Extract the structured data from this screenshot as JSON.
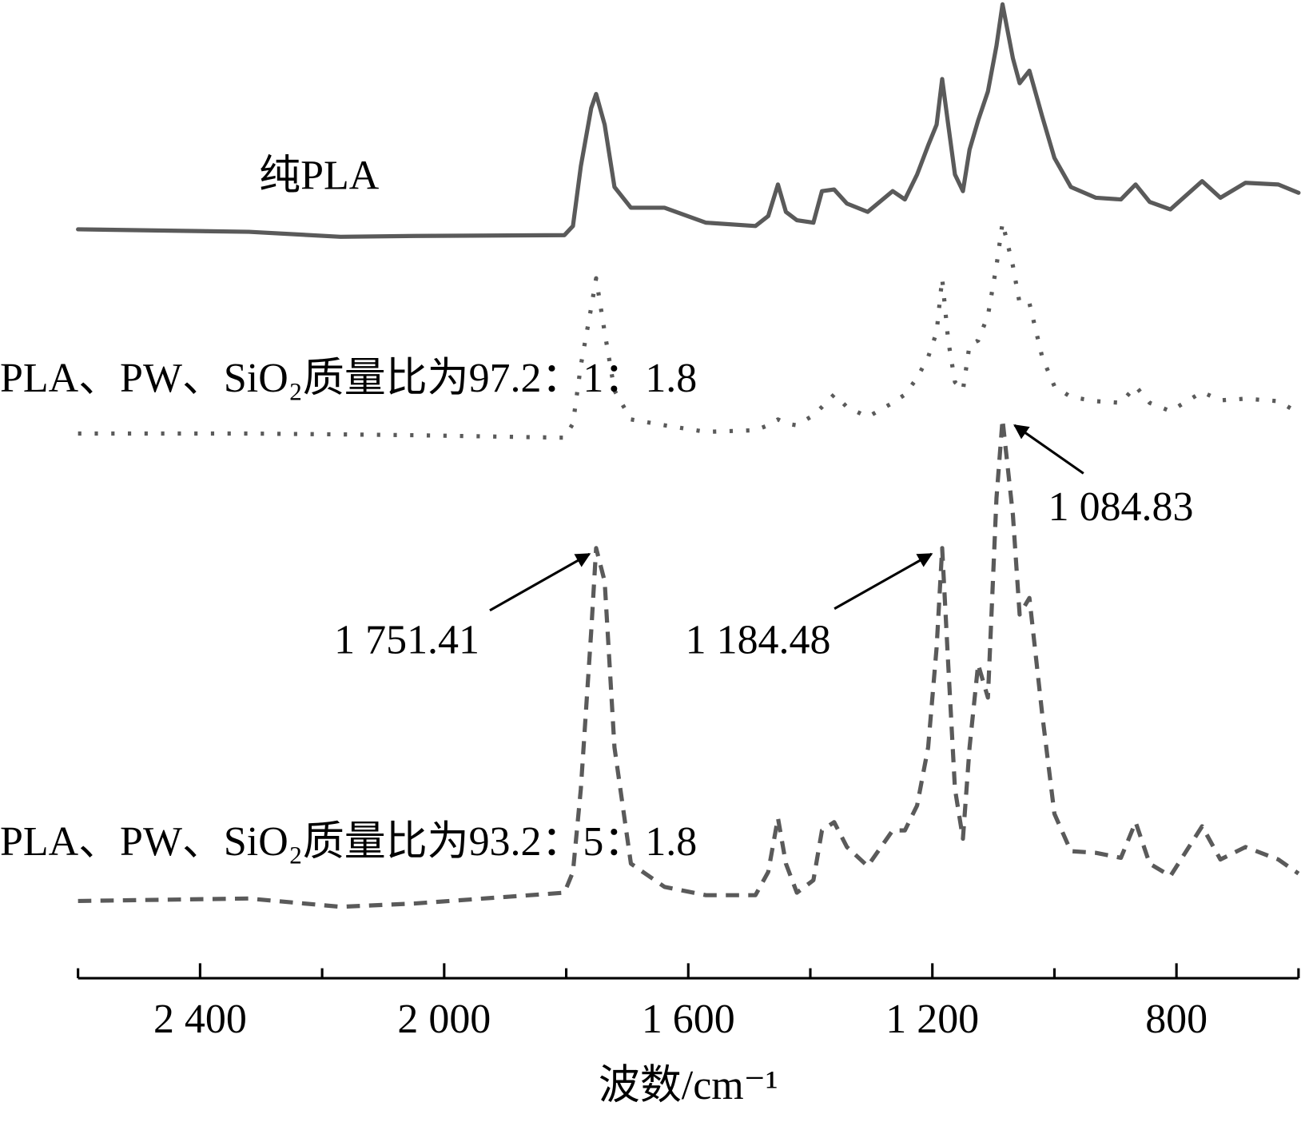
{
  "chart_data": {
    "type": "line",
    "x_label": "波数/cm⁻¹",
    "xlim": [
      2600,
      600
    ],
    "xticks": [
      {
        "value": 2400,
        "label": "2 400"
      },
      {
        "value": 2000,
        "label": "2 000"
      },
      {
        "value": 1600,
        "label": "1 600"
      },
      {
        "value": 1200,
        "label": "1 200"
      },
      800
    ],
    "xminor_ticks": [
      2600,
      2200,
      1800,
      1400,
      1000,
      600
    ],
    "ylim": [
      0,
      120
    ],
    "x": [
      2600,
      2320,
      2170,
      2048,
      1803,
      1789,
      1776,
      1759,
      1751,
      1737,
      1721,
      1694,
      1639,
      1571,
      1490,
      1469,
      1453,
      1440,
      1422,
      1395,
      1381,
      1361,
      1340,
      1306,
      1265,
      1245,
      1225,
      1207,
      1193,
      1184,
      1174,
      1163,
      1150,
      1139,
      1125,
      1109,
      1095,
      1085,
      1068,
      1057,
      1041,
      1020,
      1000,
      973,
      932,
      891,
      867,
      844,
      810,
      758,
      728,
      687,
      633,
      600
    ],
    "series": [
      {
        "name": "纯PLA",
        "color": "#5a5a5a",
        "style": "solid",
        "values": [
          90.2,
          89.9,
          89.3,
          89.4,
          89.5,
          90.6,
          97.8,
          104.8,
          106.5,
          102.8,
          95.3,
          92.8,
          92.8,
          91.0,
          90.6,
          91.8,
          95.6,
          92.3,
          91.3,
          91.0,
          94.8,
          95.0,
          93.3,
          92.3,
          94.8,
          93.8,
          96.8,
          100.3,
          102.8,
          108.3,
          102.8,
          96.8,
          94.8,
          99.8,
          103.3,
          106.8,
          112.3,
          117.3,
          110.8,
          107.8,
          109.3,
          103.8,
          98.8,
          95.3,
          94.0,
          93.8,
          95.6,
          93.5,
          92.6,
          96.0,
          94.0,
          95.8,
          95.6,
          94.6
        ]
      },
      {
        "name": "PLA、PW、SiO₂质量比为97.2：1：1.8",
        "color": "#5a5a5a",
        "style": "dotted",
        "values": [
          65.6,
          65.6,
          65.5,
          65.4,
          65.1,
          66.8,
          73.8,
          80.8,
          84.3,
          77.8,
          70.8,
          67.3,
          66.6,
          65.8,
          66.0,
          66.6,
          67.3,
          66.8,
          66.6,
          67.8,
          68.8,
          70.3,
          68.8,
          67.6,
          69.3,
          70.3,
          72.3,
          74.8,
          77.8,
          84.3,
          76.8,
          71.8,
          70.8,
          76.3,
          76.8,
          79.8,
          85.8,
          91.0,
          85.8,
          81.3,
          81.3,
          74.8,
          71.3,
          70.0,
          69.5,
          69.3,
          71.3,
          69.3,
          68.3,
          70.6,
          69.6,
          69.8,
          69.5,
          68.1
        ]
      },
      {
        "name": "PLA、PW、SiO₂质量比为93.2：5：1.8",
        "color": "#5a5a5a",
        "style": "dashed",
        "values": [
          9.3,
          9.6,
          8.6,
          9.0,
          10.3,
          12.8,
          22.8,
          41.8,
          51.8,
          47.8,
          27.8,
          13.8,
          11.0,
          10.0,
          10.0,
          12.8,
          19.3,
          13.8,
          10.3,
          11.8,
          17.8,
          18.8,
          15.8,
          13.5,
          17.8,
          17.8,
          20.8,
          27.8,
          39.8,
          51.8,
          37.8,
          22.8,
          16.8,
          27.8,
          37.8,
          33.8,
          57.8,
          67.3,
          55.8,
          43.8,
          45.8,
          31.8,
          19.8,
          15.3,
          15.1,
          14.5,
          18.8,
          13.8,
          12.3,
          18.3,
          14.3,
          15.8,
          14.3,
          12.6
        ]
      }
    ],
    "annotations": [
      "1 751.41",
      "1 184.48",
      "1 084.83"
    ]
  }
}
